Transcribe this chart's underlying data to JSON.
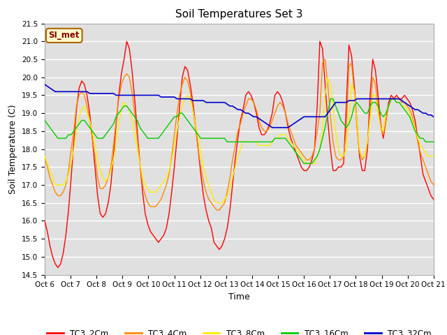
{
  "title": "Soil Temperatures Set 3",
  "xlabel": "Time",
  "ylabel": "Soil Temperature (C)",
  "ylim": [
    14.5,
    21.5
  ],
  "annotation_text": "SI_met",
  "annotation_bg": "#ffffcc",
  "annotation_border": "#aa6600",
  "annotation_text_color": "#880000",
  "xtick_labels": [
    "Oct 6",
    "Oct 7",
    " Oct 8",
    " Oct 9",
    "Oct 10",
    "Oct 11",
    "Oct 12",
    "Oct 13",
    "Oct 14",
    "Oct 15",
    "Oct 16",
    "Oct 17",
    "Oct 18",
    "Oct 19",
    "Oct 20",
    "Oct 21"
  ],
  "series_keys": [
    "TC3_2Cm",
    "TC3_4Cm",
    "TC3_8Cm",
    "TC3_16Cm",
    "TC3_32Cm"
  ],
  "series": {
    "TC3_2Cm": {
      "color": "#ff0000",
      "lw": 1.0
    },
    "TC3_4Cm": {
      "color": "#ff8800",
      "lw": 1.0
    },
    "TC3_8Cm": {
      "color": "#ffee00",
      "lw": 1.0
    },
    "TC3_16Cm": {
      "color": "#00cc00",
      "lw": 1.0
    },
    "TC3_32Cm": {
      "color": "#0000cc",
      "lw": 1.2
    }
  },
  "TC3_2Cm": [
    16.0,
    15.7,
    15.3,
    15.0,
    14.8,
    14.7,
    14.8,
    15.1,
    15.6,
    16.3,
    17.2,
    18.2,
    19.1,
    19.7,
    19.9,
    19.8,
    19.5,
    19.0,
    18.3,
    17.5,
    16.7,
    16.2,
    16.1,
    16.2,
    16.5,
    17.0,
    17.8,
    18.7,
    19.5,
    20.1,
    20.5,
    21.0,
    20.8,
    20.2,
    19.4,
    18.5,
    17.6,
    16.8,
    16.2,
    15.9,
    15.7,
    15.6,
    15.5,
    15.4,
    15.5,
    15.6,
    15.8,
    16.2,
    16.8,
    17.5,
    18.3,
    19.2,
    20.0,
    20.3,
    20.2,
    19.8,
    19.3,
    18.7,
    18.0,
    17.3,
    16.7,
    16.3,
    16.0,
    15.8,
    15.4,
    15.3,
    15.2,
    15.3,
    15.5,
    15.8,
    16.3,
    17.0,
    17.7,
    18.3,
    18.8,
    19.1,
    19.5,
    19.6,
    19.5,
    19.3,
    19.0,
    18.6,
    18.4,
    18.4,
    18.5,
    18.7,
    19.0,
    19.5,
    19.6,
    19.5,
    19.3,
    19.0,
    18.6,
    18.3,
    18.1,
    17.9,
    17.7,
    17.5,
    17.4,
    17.4,
    17.5,
    17.7,
    18.0,
    19.2,
    21.0,
    20.8,
    19.8,
    18.8,
    18.0,
    17.4,
    17.4,
    17.5,
    17.5,
    17.6,
    19.2,
    20.9,
    20.6,
    19.8,
    18.8,
    17.8,
    17.4,
    17.4,
    18.0,
    19.5,
    20.5,
    20.2,
    19.5,
    18.7,
    18.3,
    18.8,
    19.3,
    19.5,
    19.4,
    19.5,
    19.4,
    19.4,
    19.5,
    19.4,
    19.3,
    19.1,
    18.8,
    18.3,
    17.8,
    17.3,
    17.1,
    16.9,
    16.7,
    16.6
  ],
  "TC3_4Cm": [
    17.8,
    17.5,
    17.2,
    17.0,
    16.8,
    16.7,
    16.7,
    16.8,
    17.0,
    17.4,
    18.0,
    18.5,
    19.2,
    19.5,
    19.6,
    19.5,
    19.2,
    18.8,
    18.3,
    17.8,
    17.2,
    16.9,
    16.9,
    17.0,
    17.2,
    17.5,
    18.1,
    18.8,
    19.4,
    19.8,
    20.0,
    20.1,
    20.0,
    19.6,
    19.0,
    18.3,
    17.6,
    17.0,
    16.7,
    16.5,
    16.4,
    16.4,
    16.4,
    16.5,
    16.6,
    16.8,
    17.0,
    17.3,
    17.8,
    18.4,
    19.0,
    19.5,
    19.8,
    20.0,
    19.9,
    19.6,
    19.1,
    18.6,
    18.0,
    17.5,
    17.1,
    16.8,
    16.6,
    16.5,
    16.4,
    16.3,
    16.3,
    16.4,
    16.5,
    16.8,
    17.2,
    17.7,
    18.1,
    18.5,
    18.7,
    19.0,
    19.2,
    19.4,
    19.4,
    19.3,
    19.1,
    18.8,
    18.6,
    18.5,
    18.5,
    18.6,
    18.8,
    19.0,
    19.2,
    19.3,
    19.2,
    19.0,
    18.7,
    18.5,
    18.3,
    18.1,
    18.0,
    17.9,
    17.8,
    17.7,
    17.7,
    17.8,
    18.0,
    18.5,
    19.0,
    20.4,
    20.5,
    19.8,
    18.9,
    18.2,
    17.8,
    17.7,
    17.7,
    17.8,
    18.5,
    20.3,
    20.4,
    19.6,
    18.6,
    17.9,
    17.7,
    17.8,
    18.2,
    19.0,
    20.0,
    19.8,
    19.2,
    18.6,
    18.4,
    18.8,
    19.2,
    19.4,
    19.4,
    19.4,
    19.4,
    19.3,
    19.3,
    19.2,
    19.1,
    18.9,
    18.6,
    18.2,
    17.9,
    17.7,
    17.5,
    17.3,
    17.1,
    17.0
  ],
  "TC3_8Cm": [
    17.8,
    17.6,
    17.4,
    17.2,
    17.0,
    17.0,
    17.0,
    17.0,
    17.1,
    17.3,
    17.6,
    18.0,
    18.5,
    18.9,
    19.1,
    19.2,
    19.0,
    18.8,
    18.5,
    18.1,
    17.7,
    17.4,
    17.2,
    17.1,
    17.2,
    17.4,
    17.7,
    18.2,
    18.7,
    19.1,
    19.3,
    19.2,
    19.1,
    18.8,
    18.4,
    18.0,
    17.6,
    17.2,
    17.0,
    16.9,
    16.8,
    16.8,
    16.8,
    16.9,
    17.0,
    17.1,
    17.2,
    17.4,
    17.7,
    18.1,
    18.5,
    18.9,
    19.2,
    19.4,
    19.5,
    19.4,
    19.1,
    18.7,
    18.3,
    17.9,
    17.5,
    17.2,
    17.0,
    16.8,
    16.6,
    16.5,
    16.5,
    16.5,
    16.6,
    16.7,
    16.9,
    17.2,
    17.5,
    17.8,
    18.0,
    18.2,
    18.2,
    18.2,
    18.2,
    18.2,
    18.2,
    18.1,
    18.1,
    18.1,
    18.1,
    18.1,
    18.2,
    18.3,
    18.3,
    18.4,
    18.4,
    18.4,
    18.3,
    18.2,
    18.1,
    18.0,
    17.9,
    17.8,
    17.7,
    17.6,
    17.6,
    17.6,
    17.6,
    17.8,
    18.0,
    18.5,
    19.5,
    20.0,
    19.8,
    19.2,
    18.5,
    18.0,
    17.8,
    17.8,
    18.0,
    18.8,
    19.8,
    19.6,
    18.8,
    18.0,
    17.8,
    17.8,
    18.2,
    18.8,
    19.5,
    19.5,
    19.0,
    18.6,
    18.5,
    19.0,
    19.2,
    19.4,
    19.4,
    19.3,
    19.3,
    19.2,
    19.2,
    19.1,
    19.0,
    18.8,
    18.6,
    18.3,
    18.1,
    18.0,
    17.9,
    17.8,
    17.8,
    17.8
  ],
  "TC3_16Cm": [
    18.8,
    18.7,
    18.6,
    18.5,
    18.4,
    18.3,
    18.3,
    18.3,
    18.3,
    18.4,
    18.4,
    18.5,
    18.6,
    18.7,
    18.8,
    18.8,
    18.7,
    18.6,
    18.5,
    18.4,
    18.3,
    18.3,
    18.3,
    18.4,
    18.5,
    18.6,
    18.7,
    18.9,
    19.0,
    19.1,
    19.2,
    19.2,
    19.1,
    19.0,
    18.9,
    18.8,
    18.6,
    18.5,
    18.4,
    18.3,
    18.3,
    18.3,
    18.3,
    18.3,
    18.4,
    18.5,
    18.6,
    18.7,
    18.8,
    18.9,
    18.9,
    19.0,
    19.0,
    18.9,
    18.8,
    18.7,
    18.6,
    18.5,
    18.4,
    18.3,
    18.3,
    18.3,
    18.3,
    18.3,
    18.3,
    18.3,
    18.3,
    18.3,
    18.3,
    18.2,
    18.2,
    18.2,
    18.2,
    18.2,
    18.2,
    18.2,
    18.2,
    18.2,
    18.2,
    18.2,
    18.2,
    18.2,
    18.2,
    18.2,
    18.2,
    18.2,
    18.2,
    18.3,
    18.3,
    18.3,
    18.3,
    18.3,
    18.2,
    18.1,
    18.0,
    17.9,
    17.8,
    17.7,
    17.6,
    17.6,
    17.6,
    17.6,
    17.7,
    17.8,
    18.0,
    18.3,
    18.6,
    19.0,
    19.4,
    19.4,
    19.2,
    19.0,
    18.8,
    18.7,
    18.6,
    18.7,
    18.9,
    19.2,
    19.3,
    19.2,
    19.1,
    19.0,
    19.0,
    19.2,
    19.3,
    19.3,
    19.2,
    19.0,
    18.9,
    19.0,
    19.2,
    19.4,
    19.4,
    19.3,
    19.3,
    19.2,
    19.1,
    19.0,
    18.9,
    18.7,
    18.5,
    18.4,
    18.3,
    18.3,
    18.2,
    18.2,
    18.2,
    18.2
  ],
  "TC3_32Cm": [
    19.8,
    19.75,
    19.7,
    19.65,
    19.6,
    19.6,
    19.6,
    19.6,
    19.6,
    19.6,
    19.6,
    19.6,
    19.6,
    19.6,
    19.6,
    19.6,
    19.6,
    19.55,
    19.55,
    19.55,
    19.55,
    19.55,
    19.55,
    19.55,
    19.55,
    19.55,
    19.55,
    19.5,
    19.5,
    19.5,
    19.5,
    19.5,
    19.5,
    19.5,
    19.5,
    19.5,
    19.5,
    19.5,
    19.5,
    19.5,
    19.5,
    19.5,
    19.5,
    19.5,
    19.45,
    19.45,
    19.45,
    19.45,
    19.45,
    19.45,
    19.4,
    19.4,
    19.4,
    19.4,
    19.4,
    19.4,
    19.35,
    19.35,
    19.35,
    19.35,
    19.35,
    19.3,
    19.3,
    19.3,
    19.3,
    19.3,
    19.3,
    19.3,
    19.3,
    19.25,
    19.2,
    19.2,
    19.15,
    19.1,
    19.1,
    19.05,
    19.0,
    19.0,
    18.95,
    18.9,
    18.9,
    18.85,
    18.8,
    18.75,
    18.7,
    18.65,
    18.6,
    18.6,
    18.6,
    18.6,
    18.6,
    18.6,
    18.6,
    18.65,
    18.7,
    18.75,
    18.8,
    18.85,
    18.9,
    18.9,
    18.9,
    18.9,
    18.9,
    18.9,
    18.9,
    18.9,
    18.9,
    19.0,
    19.1,
    19.2,
    19.3,
    19.3,
    19.3,
    19.3,
    19.3,
    19.35,
    19.35,
    19.35,
    19.4,
    19.4,
    19.4,
    19.4,
    19.4,
    19.4,
    19.4,
    19.4,
    19.4,
    19.4,
    19.4,
    19.4,
    19.4,
    19.4,
    19.4,
    19.4,
    19.4,
    19.35,
    19.3,
    19.25,
    19.2,
    19.15,
    19.1,
    19.1,
    19.05,
    19.0,
    19.0,
    18.95,
    18.95,
    18.9
  ]
}
